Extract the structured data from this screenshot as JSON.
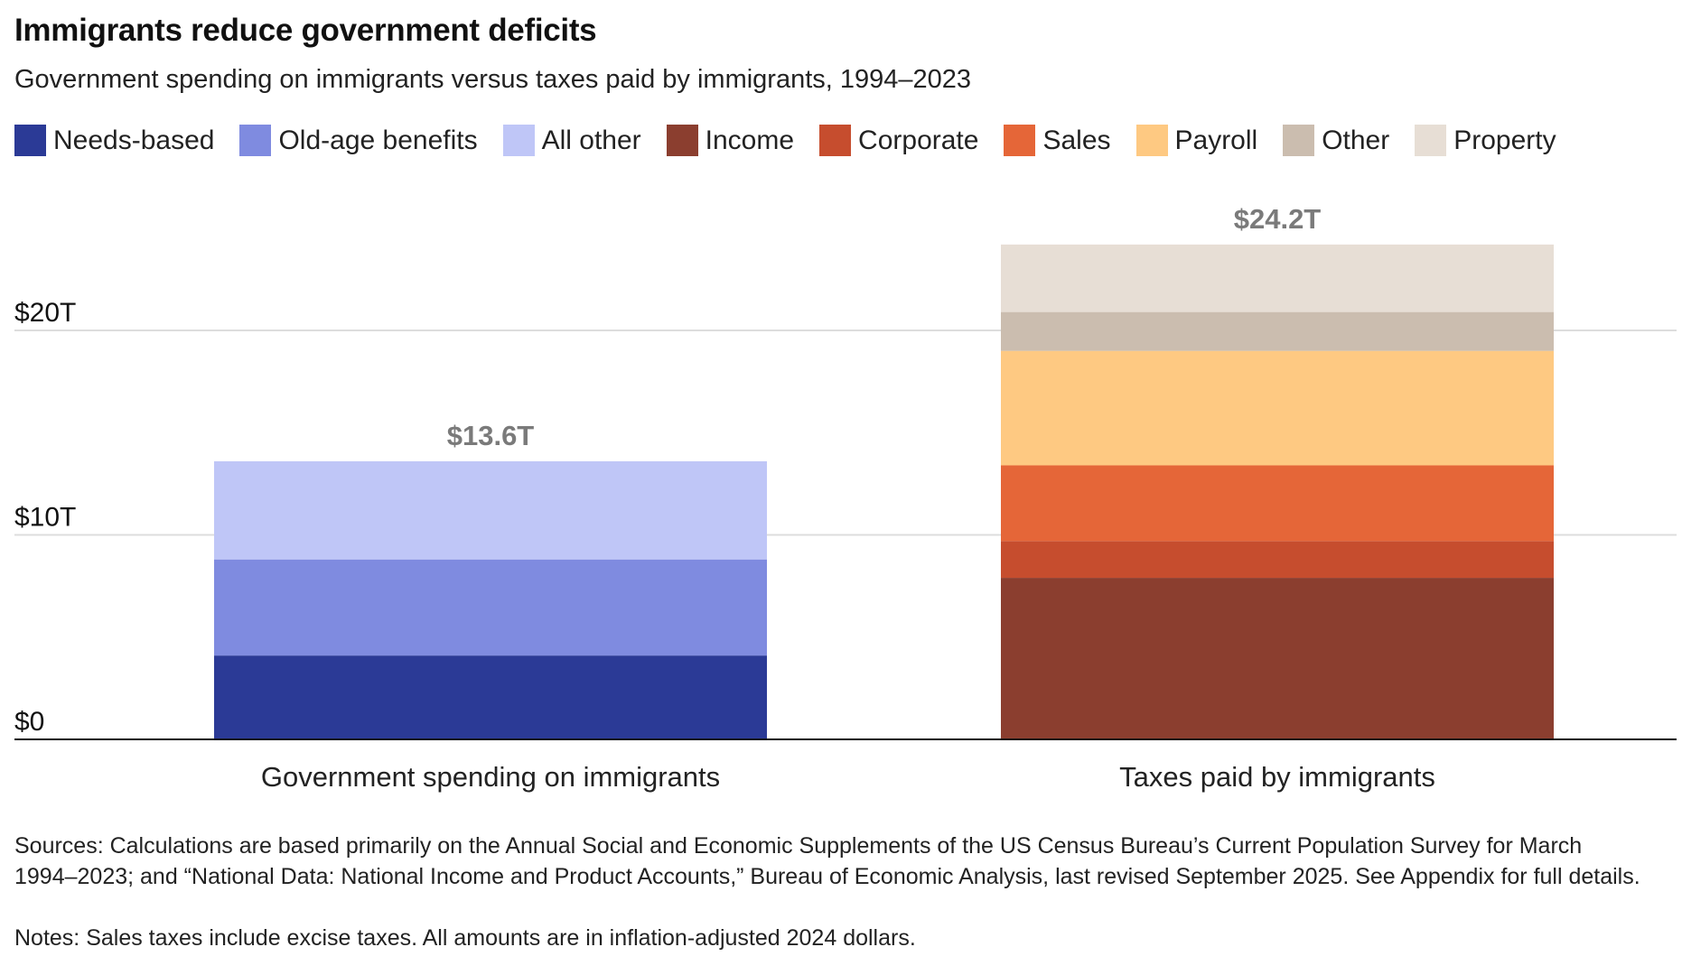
{
  "title": "Immigrants reduce government deficits",
  "subtitle": "Government spending on immigrants versus taxes paid by immigrants, 1994–2023",
  "legend": [
    {
      "label": "Needs-based",
      "color": "#2b3a96"
    },
    {
      "label": "Old-age benefits",
      "color": "#7f8be0"
    },
    {
      "label": "All other",
      "color": "#bfc6f7"
    },
    {
      "label": "Income",
      "color": "#8b3e2f"
    },
    {
      "label": "Corporate",
      "color": "#c64d2e"
    },
    {
      "label": "Sales",
      "color": "#e56638"
    },
    {
      "label": "Payroll",
      "color": "#fec982"
    },
    {
      "label": "Other",
      "color": "#cbbdaf"
    },
    {
      "label": "Property",
      "color": "#e7ded5"
    }
  ],
  "chart_data": {
    "type": "bar",
    "stacked": true,
    "categories": [
      "Government spending on immigrants",
      "Taxes paid by immigrants"
    ],
    "ylim": [
      0,
      24.2
    ],
    "yticks": [
      {
        "value": 0,
        "label": "$0"
      },
      {
        "value": 10,
        "label": "$10T"
      },
      {
        "value": 20,
        "label": "$20T"
      }
    ],
    "grid": true,
    "legend_position": "top",
    "bars": [
      {
        "category": "Government spending on immigrants",
        "total_label": "$13.6T",
        "segments": [
          {
            "name": "Needs-based",
            "value": 4.1,
            "color": "#2b3a96"
          },
          {
            "name": "Old-age benefits",
            "value": 4.7,
            "color": "#7f8be0"
          },
          {
            "name": "All other",
            "value": 4.8,
            "color": "#bfc6f7"
          }
        ]
      },
      {
        "category": "Taxes paid by immigrants",
        "total_label": "$24.2T",
        "segments": [
          {
            "name": "Income",
            "value": 7.9,
            "color": "#8b3e2f"
          },
          {
            "name": "Corporate",
            "value": 1.8,
            "color": "#c64d2e"
          },
          {
            "name": "Sales",
            "value": 3.7,
            "color": "#e56638"
          },
          {
            "name": "Payroll",
            "value": 5.6,
            "color": "#fec982"
          },
          {
            "name": "Other",
            "value": 1.9,
            "color": "#cbbdaf"
          },
          {
            "name": "Property",
            "value": 3.3,
            "color": "#e7ded5"
          }
        ]
      }
    ]
  },
  "footer": {
    "sources": "Sources: Calculations are based primarily on the Annual Social and Economic Supplements of the US Census Bureau’s Current Population Survey for March 1994–2023; and “National Data: National Income and Product Accounts,” Bureau of Economic Analysis, last revised September 2025. See Appendix for full details.",
    "notes": "Notes: Sales taxes include excise taxes. All amounts are in inflation-adjusted 2024 dollars."
  }
}
